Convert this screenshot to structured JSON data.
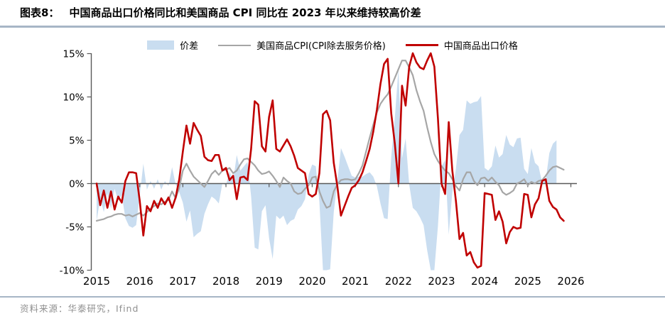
{
  "header": {
    "tag": "图表8：",
    "title": "中国商品出口价格同比和美国商品 CPI 同比在 2023 年以来维持较高价差"
  },
  "legend": [
    {
      "label": "价差",
      "type": "area",
      "color": "#c9ddf0"
    },
    {
      "label": "美国商品CPI(CPI除去服务价格)",
      "type": "line",
      "color": "#a6a6a6"
    },
    {
      "label": "中国商品出口价格",
      "type": "line",
      "color": "#c00000"
    }
  ],
  "footer": {
    "source": "资料来源：华泰研究，Ifind"
  },
  "colors": {
    "area": "#c9ddf0",
    "us_cpi_line": "#a6a6a6",
    "china_export_line": "#c00000",
    "axis": "#595959",
    "rule": "#a7b6c6",
    "tick_label": "#000000"
  },
  "chart_data": {
    "type": "area",
    "freq": "monthly",
    "x_start": "2015-01",
    "x_end": "2025-11",
    "ylim": [
      -10,
      15
    ],
    "y_ticks": {
      "values": [
        15,
        10,
        5,
        0,
        -5,
        -10
      ],
      "labels": [
        "15%",
        "10%",
        "5%",
        "0%",
        "-5%",
        "-10%"
      ]
    },
    "x_tick_labels": [
      "2015",
      "2016",
      "2017",
      "2018",
      "2019",
      "2020",
      "2021",
      "2022",
      "2023",
      "2024",
      "2025",
      "2026"
    ],
    "series": [
      {
        "name": "价差",
        "type": "area",
        "color": "#c9ddf0",
        "note": "美国商品CPI同比 减 中国商品出口价格同比, 百分点",
        "values": [
          -4.3,
          -1.7,
          -3.3,
          -1.1,
          -2.9,
          -0.6,
          -2.0,
          -1.3,
          -4.0,
          -4.9,
          -5.1,
          -4.8,
          -1.4,
          2.3,
          -0.7,
          0.3,
          -0.6,
          0.5,
          -0.7,
          0.3,
          -0.3,
          1.9,
          -0.1,
          -1.0,
          -2.2,
          -4.4,
          -3.1,
          -6.2,
          -5.8,
          -5.5,
          -3.5,
          -2.4,
          -1.5,
          -1.8,
          -2.3,
          0.0,
          -0.2,
          1.4,
          0.3,
          3.3,
          1.5,
          2.0,
          2.5,
          -1.5,
          -7.4,
          -7.6,
          -3.2,
          -2.5,
          -6.3,
          -8.7,
          -3.7,
          -4.1,
          -3.7,
          -4.8,
          -4.3,
          -4.1,
          -3.0,
          -2.6,
          -1.8,
          1.0,
          2.2,
          2.0,
          -2.1,
          -10.0,
          -11.2,
          -9.9,
          -3.3,
          0.2,
          4.1,
          3.1,
          2.0,
          0.9,
          0.7,
          0.8,
          0.8,
          1.1,
          1.3,
          0.8,
          -0.3,
          -2.3,
          -4.0,
          -4.1,
          3.1,
          7.6,
          13.2,
          2.9,
          5.2,
          -0.1,
          -2.8,
          -3.2,
          -3.9,
          -4.8,
          -7.7,
          -10.3,
          -10.1,
          -4.9,
          2.0,
          2.7,
          -5.9,
          -1.0,
          1.7,
          5.6,
          6.2,
          9.6,
          9.2,
          9.4,
          9.5,
          10.1,
          1.8,
          1.5,
          2.0,
          4.4,
          3.0,
          3.4,
          5.6,
          4.5,
          4.2,
          5.2,
          5.3,
          1.7,
          1.1,
          4.1,
          2.4,
          2.0,
          0.1,
          0.4,
          3.5,
          4.6,
          5.0,
          null,
          null
        ]
      },
      {
        "name": "美国商品CPI(CPI除去服务价格)",
        "type": "line",
        "color": "#a6a6a6",
        "unit": "%",
        "values": [
          -4.3,
          -4.2,
          -4.1,
          -3.9,
          -3.8,
          -3.6,
          -3.5,
          -3.5,
          -3.7,
          -3.6,
          -3.8,
          -3.6,
          -3.4,
          -3.7,
          -3.3,
          -2.9,
          -2.6,
          -2.3,
          -2.4,
          -2.1,
          -1.9,
          -0.9,
          -1.7,
          -0.5,
          1.5,
          2.3,
          1.5,
          0.8,
          0.4,
          0.0,
          -0.4,
          0.3,
          1.1,
          1.5,
          1.0,
          1.5,
          1.6,
          1.8,
          1.2,
          1.5,
          2.2,
          2.8,
          2.9,
          2.5,
          2.1,
          1.5,
          1.1,
          1.2,
          1.4,
          0.9,
          0.3,
          -0.4,
          0.7,
          0.3,
          0.0,
          -0.9,
          -1.2,
          -1.1,
          -0.6,
          -0.2,
          0.7,
          0.8,
          -0.9,
          -2.0,
          -2.8,
          -2.6,
          -0.9,
          -0.1,
          0.4,
          0.5,
          0.5,
          0.4,
          0.5,
          1.2,
          2.1,
          3.7,
          5.3,
          6.8,
          8.2,
          9.2,
          9.8,
          10.3,
          11.2,
          12.2,
          13.2,
          14.2,
          14.2,
          13.4,
          12.5,
          10.8,
          9.5,
          8.4,
          6.5,
          4.8,
          3.4,
          2.6,
          2.0,
          1.5,
          1.2,
          0.5,
          -0.3,
          -0.8,
          0.5,
          1.3,
          1.3,
          0.3,
          -0.2,
          0.6,
          0.7,
          0.3,
          0.7,
          0.2,
          -0.2,
          -1.0,
          -1.3,
          -1.1,
          -0.8,
          0.0,
          0.2,
          0.5,
          -0.2,
          0.2,
          0.0,
          0.3,
          0.4,
          0.9,
          1.5,
          1.9,
          2.0,
          1.8,
          1.6
        ]
      },
      {
        "name": "中国商品出口价格",
        "type": "line",
        "color": "#c00000",
        "unit": "%",
        "values": [
          0.0,
          -2.5,
          -0.8,
          -2.8,
          -0.9,
          -3.0,
          -1.5,
          -2.2,
          0.3,
          1.3,
          1.3,
          1.2,
          -2.0,
          -6.0,
          -2.6,
          -3.2,
          -2.0,
          -2.8,
          -1.7,
          -2.4,
          -1.6,
          -2.8,
          -1.6,
          0.5,
          3.7,
          6.7,
          4.6,
          7.0,
          6.2,
          5.5,
          3.1,
          2.7,
          2.6,
          3.3,
          3.3,
          1.5,
          1.8,
          0.4,
          0.9,
          -1.8,
          0.7,
          0.8,
          0.4,
          4.0,
          9.5,
          9.1,
          4.3,
          3.7,
          7.7,
          9.6,
          4.0,
          3.7,
          4.4,
          5.1,
          4.3,
          3.2,
          1.8,
          1.5,
          1.2,
          -1.2,
          -1.5,
          -1.2,
          1.2,
          8.0,
          8.4,
          7.3,
          2.4,
          -0.3,
          -3.7,
          -2.6,
          -1.5,
          -0.5,
          -0.2,
          0.4,
          1.3,
          2.6,
          4.0,
          6.0,
          8.5,
          11.5,
          13.8,
          14.4,
          8.1,
          4.6,
          0.0,
          11.3,
          9.0,
          13.5,
          15.3,
          14.0,
          13.4,
          13.2,
          14.2,
          15.1,
          13.5,
          7.5,
          0.0,
          -1.2,
          7.1,
          1.5,
          -2.0,
          -6.4,
          -5.7,
          -8.3,
          -7.9,
          -9.1,
          -9.7,
          -9.5,
          -1.1,
          -1.2,
          -1.3,
          -4.2,
          -3.2,
          -4.4,
          -6.9,
          -5.6,
          -5.0,
          -5.2,
          -5.1,
          -1.2,
          -1.3,
          -3.9,
          -2.4,
          -1.7,
          0.3,
          0.5,
          -2.0,
          -2.7,
          -3.0,
          -3.9,
          -4.3
        ]
      }
    ]
  }
}
